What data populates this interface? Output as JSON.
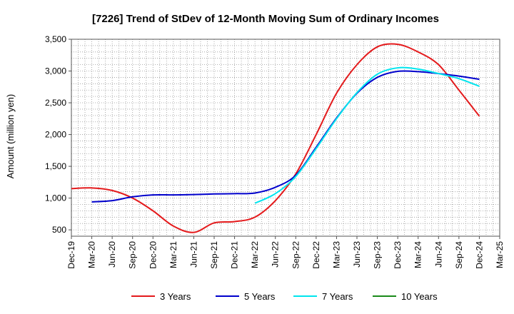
{
  "chart_data": {
    "type": "line",
    "title": "[7226]  Trend of StDev of 12-Month Moving Sum of Ordinary Incomes",
    "ylabel": "Amount (million yen)",
    "xlabel": "",
    "ylim": [
      400,
      3500
    ],
    "yticks": [
      500,
      1000,
      1500,
      2000,
      2500,
      3000,
      3500
    ],
    "ytick_labels": [
      "500",
      "1,000",
      "1,500",
      "2,000",
      "2,500",
      "3,000",
      "3,500"
    ],
    "x_categories": [
      "Dec-19",
      "Mar-20",
      "Jun-20",
      "Sep-20",
      "Dec-20",
      "Mar-21",
      "Jun-21",
      "Sep-21",
      "Dec-21",
      "Mar-22",
      "Jun-22",
      "Sep-22",
      "Dec-22",
      "Mar-23",
      "Jun-23",
      "Sep-23",
      "Dec-23",
      "Mar-24",
      "Jun-24",
      "Sep-24",
      "Dec-24",
      "Mar-25"
    ],
    "grid": true,
    "legend_position": "bottom",
    "series": [
      {
        "name": "3 Years",
        "color": "#e41a1c",
        "values": [
          1150,
          1160,
          1120,
          1000,
          800,
          560,
          460,
          610,
          630,
          700,
          960,
          1380,
          2000,
          2650,
          3100,
          3380,
          3420,
          3300,
          3100,
          2700,
          2290,
          null
        ]
      },
      {
        "name": "5 Years",
        "color": "#0000cc",
        "values": [
          null,
          940,
          960,
          1020,
          1050,
          1050,
          1055,
          1065,
          1070,
          1080,
          1170,
          1360,
          1800,
          2260,
          2650,
          2900,
          2995,
          2990,
          2960,
          2920,
          2870,
          null
        ]
      },
      {
        "name": "7 Years",
        "color": "#00e5ee",
        "values": [
          null,
          null,
          null,
          null,
          null,
          null,
          null,
          null,
          null,
          920,
          1070,
          1340,
          1780,
          2250,
          2660,
          2950,
          3050,
          3030,
          2960,
          2880,
          2760,
          null
        ]
      },
      {
        "name": "10 Years",
        "color": "#1a8a1a",
        "values": [
          null,
          null,
          null,
          null,
          null,
          null,
          null,
          null,
          null,
          null,
          null,
          null,
          null,
          null,
          null,
          null,
          null,
          null,
          null,
          null,
          null,
          null
        ]
      }
    ]
  }
}
